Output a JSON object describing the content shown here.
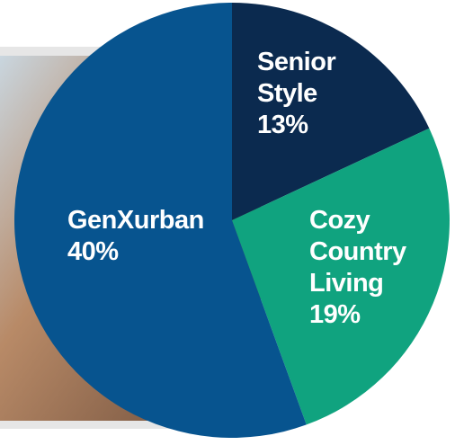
{
  "chart_data": {
    "type": "pie",
    "categories": [
      "Senior Style",
      "Cozy Country Living",
      "GenXurban"
    ],
    "values": [
      13,
      19,
      40
    ],
    "value_labels": [
      "13%",
      "19%",
      "40%"
    ],
    "colors": [
      "#0b2a4f",
      "#10a37f",
      "#07548f"
    ]
  }
}
